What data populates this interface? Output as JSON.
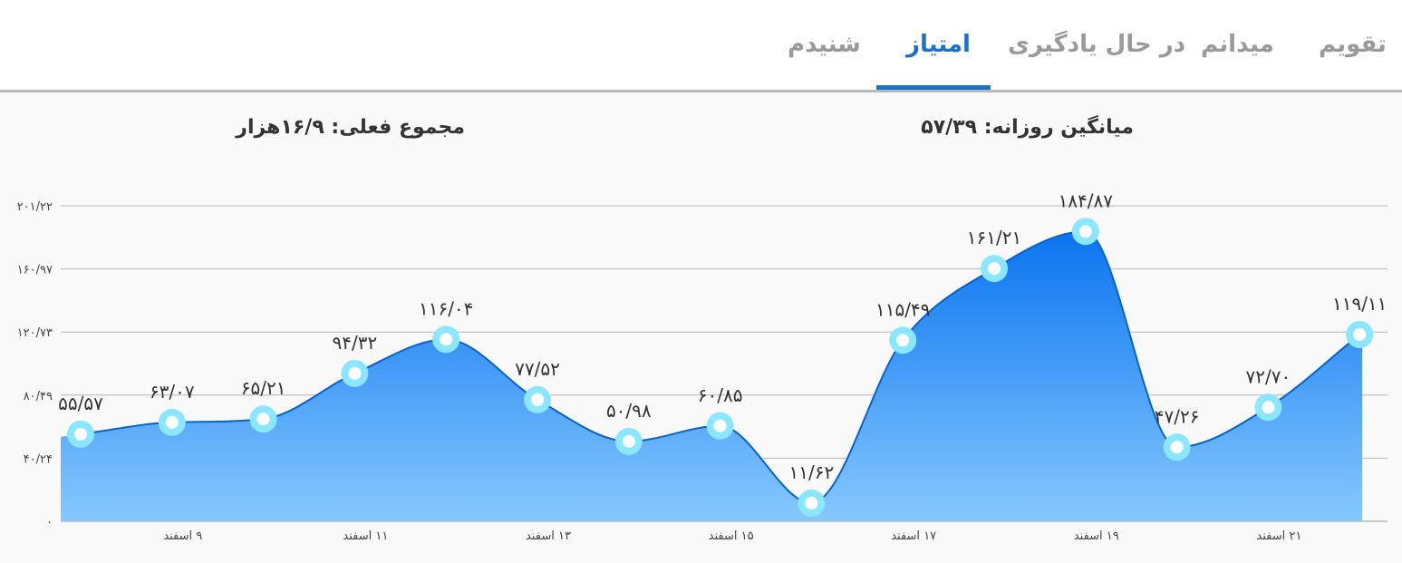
{
  "tabs": [
    {
      "label": "تقویم",
      "active": false
    },
    {
      "label": "میدانم",
      "active": false
    },
    {
      "label": "در حال یادگیری",
      "active": false
    },
    {
      "label": "امتیاز",
      "active": true
    },
    {
      "label": "شنیدم",
      "active": false
    }
  ],
  "stats": {
    "daily_average": "میانگین روزانه: ۵۷/۳۹",
    "current_total": "مجموع فعلی: ۱۶/۹هزار"
  },
  "colors": {
    "accent": "#1a73c9",
    "area_top": "#0a74f0",
    "area_bottom": "#86c8ff",
    "marker_ring": "#8be6ff"
  },
  "chart_data": {
    "type": "area",
    "y_ticks": [
      {
        "value": 0,
        "label": "۰"
      },
      {
        "value": 40.24,
        "label": "۴۰/۲۴"
      },
      {
        "value": 80.49,
        "label": "۸۰/۴۹"
      },
      {
        "value": 120.73,
        "label": "۱۲۰/۷۳"
      },
      {
        "value": 160.97,
        "label": "۱۶۰/۹۷"
      },
      {
        "value": 201.22,
        "label": "۲۰۱/۲۲"
      }
    ],
    "ylim": [
      0,
      201.22
    ],
    "x_labels": [
      "۹ اسفند",
      "۱۱ اسفند",
      "۱۳ اسفند",
      "۱۵ اسفند",
      "۱۷ اسفند",
      "۱۹ اسفند",
      "۲۱ اسفند"
    ],
    "points": [
      {
        "value": 55.57,
        "label": "۵۵/۵۷"
      },
      {
        "value": 63.07,
        "label": "۶۳/۰۷"
      },
      {
        "value": 65.21,
        "label": "۶۵/۲۱"
      },
      {
        "value": 94.32,
        "label": "۹۴/۳۲"
      },
      {
        "value": 116.04,
        "label": "۱۱۶/۰۴"
      },
      {
        "value": 77.52,
        "label": "۷۷/۵۲"
      },
      {
        "value": 50.98,
        "label": "۵۰/۹۸"
      },
      {
        "value": 60.85,
        "label": "۶۰/۸۵"
      },
      {
        "value": 11.62,
        "label": "۱۱/۶۲"
      },
      {
        "value": 115.49,
        "label": "۱۱۵/۴۹"
      },
      {
        "value": 161.21,
        "label": "۱۶۱/۲۱"
      },
      {
        "value": 184.87,
        "label": "۱۸۴/۸۷"
      },
      {
        "value": 47.26,
        "label": "۴۷/۲۶"
      },
      {
        "value": 72.7,
        "label": "۷۲/۷۰"
      },
      {
        "value": 119.11,
        "label": "۱۱۹/۱۱"
      }
    ],
    "grid": true,
    "legend": "none"
  }
}
